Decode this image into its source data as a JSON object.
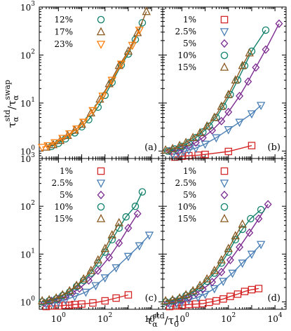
{
  "axes_labels": {
    "y": {
      "base": "τ",
      "sub": "α",
      "sup": "std",
      "sep": "/",
      "base2": "τ",
      "sub2": "α",
      "sup2": "swap"
    },
    "x": {
      "base": "τ",
      "sub": "α",
      "sup": "std",
      "sep": "/",
      "base2": "τ",
      "sub2": "0"
    }
  },
  "chart_data": [
    {
      "type": "scatter",
      "panel_label": "(a)",
      "xscale": "log",
      "yscale": "log",
      "xlim": [
        0.15,
        30000
      ],
      "ylim": [
        0.7,
        1000
      ],
      "legend_position": "top-left",
      "series": [
        {
          "name": "12%",
          "marker": "circle",
          "color": "#11806a",
          "x": [
            0.5,
            1.0,
            2,
            5,
            10,
            20,
            50,
            100,
            200,
            500,
            1000,
            2000,
            4000
          ],
          "y": [
            1.25,
            1.45,
            1.8,
            2.4,
            3.2,
            4.5,
            8.2,
            14.5,
            27,
            62,
            105,
            210,
            470
          ]
        },
        {
          "name": "17%",
          "marker": "triangle-up",
          "color": "#8a5a22",
          "x": [
            0.3,
            0.6,
            1.2,
            2.5,
            5,
            10,
            25,
            60,
            150,
            400,
            1000,
            2500,
            6000
          ],
          "y": [
            1.2,
            1.35,
            1.65,
            2.1,
            2.7,
            3.6,
            6.2,
            12,
            25,
            60,
            120,
            290,
            800
          ]
        },
        {
          "name": "23%",
          "marker": "triangle-down",
          "color": "#ff7f0e",
          "x": [
            0.2,
            0.35,
            0.7,
            1.5,
            3,
            6,
            12,
            30,
            80,
            200,
            500,
            1500,
            3000
          ],
          "y": [
            1.2,
            1.3,
            1.5,
            1.85,
            2.3,
            2.9,
            4.0,
            7.0,
            14,
            30,
            65,
            160,
            330
          ]
        }
      ]
    },
    {
      "type": "scatter",
      "panel_label": "(b)",
      "xscale": "log",
      "yscale": "log",
      "xlim": [
        0.15,
        30000
      ],
      "ylim": [
        0.7,
        1000
      ],
      "legend_position": "top-left",
      "series": [
        {
          "name": "1%",
          "marker": "square",
          "color": "#d62728",
          "x": [
            0.5,
            1,
            2,
            5,
            10,
            100,
            1000
          ],
          "y": [
            0.75,
            0.78,
            0.8,
            0.82,
            0.85,
            0.98,
            1.3
          ]
        },
        {
          "name": "2.5%",
          "marker": "triangle-down",
          "color": "#4a7fb5",
          "x": [
            0.4,
            0.7,
            1.2,
            2,
            4,
            10,
            30,
            100,
            300,
            1000,
            2500
          ],
          "y": [
            0.85,
            0.9,
            0.98,
            1.05,
            1.15,
            1.4,
            1.9,
            2.8,
            4.0,
            6.0,
            9.0
          ]
        },
        {
          "name": "5%",
          "marker": "diamond",
          "color": "#7b2a8f",
          "x": [
            0.3,
            0.6,
            1,
            2,
            4,
            8,
            20,
            50,
            100,
            300,
            700,
            1500,
            4000,
            15000
          ],
          "y": [
            1.0,
            1.05,
            1.15,
            1.3,
            1.5,
            1.9,
            2.7,
            4.2,
            6.5,
            14,
            28,
            55,
            130,
            450
          ]
        },
        {
          "name": "10%",
          "marker": "circle",
          "color": "#11806a",
          "x": [
            0.25,
            0.5,
            1,
            2,
            4,
            8,
            15,
            30,
            60,
            120,
            250,
            500,
            1000,
            4000
          ],
          "y": [
            1.0,
            1.1,
            1.25,
            1.5,
            1.9,
            2.5,
            3.3,
            5.0,
            8.5,
            15,
            30,
            60,
            120,
            330
          ]
        },
        {
          "name": "15%",
          "marker": "triangle-up",
          "color": "#8a5a22",
          "x": [
            0.2,
            0.4,
            0.8,
            1.5,
            3,
            6,
            12,
            25,
            50,
            100,
            200,
            400,
            800
          ],
          "y": [
            1.05,
            1.12,
            1.3,
            1.5,
            1.9,
            2.4,
            3.3,
            5.0,
            8.5,
            15,
            30,
            60,
            110
          ]
        }
      ]
    },
    {
      "type": "scatter",
      "panel_label": "(c)",
      "xscale": "log",
      "yscale": "log",
      "xlim": [
        0.15,
        30000
      ],
      "ylim": [
        0.7,
        1000
      ],
      "legend_position": "top-left",
      "series": [
        {
          "name": "1%",
          "marker": "square",
          "color": "#d62728",
          "x": [
            0.3,
            0.5,
            1,
            2,
            3,
            5,
            10,
            30,
            100,
            300,
            1000
          ],
          "y": [
            0.8,
            0.82,
            0.82,
            0.85,
            0.85,
            0.88,
            0.9,
            0.95,
            1.05,
            1.2,
            1.4
          ]
        },
        {
          "name": "2.5%",
          "marker": "triangle-down",
          "color": "#4a7fb5",
          "x": [
            0.3,
            0.6,
            1,
            2,
            5,
            15,
            40,
            100,
            300,
            1000,
            3000,
            8000
          ],
          "y": [
            0.9,
            0.95,
            1.0,
            1.1,
            1.3,
            1.6,
            2.2,
            3.2,
            5.2,
            9.0,
            15,
            25
          ]
        },
        {
          "name": "5%",
          "marker": "diamond",
          "color": "#7b2a8f",
          "x": [
            0.25,
            0.5,
            1,
            2,
            4,
            8,
            20,
            50,
            150,
            400,
            1000,
            2500
          ],
          "y": [
            0.95,
            1.05,
            1.15,
            1.3,
            1.55,
            1.9,
            2.8,
            4.5,
            8.5,
            17,
            35,
            70
          ]
        },
        {
          "name": "10%",
          "marker": "circle",
          "color": "#11806a",
          "x": [
            0.2,
            0.4,
            0.8,
            1.5,
            3,
            6,
            12,
            25,
            50,
            100,
            200,
            400,
            800,
            2000,
            4000
          ],
          "y": [
            1.0,
            1.05,
            1.15,
            1.35,
            1.6,
            2.1,
            2.8,
            4.0,
            6.5,
            11,
            20,
            35,
            60,
            100,
            200
          ]
        },
        {
          "name": "15%",
          "marker": "triangle-up",
          "color": "#8a5a22",
          "x": [
            0.2,
            0.4,
            0.8,
            1.5,
            3,
            6,
            12,
            25,
            50,
            100,
            200,
            400
          ],
          "y": [
            1.05,
            1.1,
            1.2,
            1.4,
            1.7,
            2.2,
            3.0,
            4.5,
            7.5,
            13,
            25,
            45
          ]
        }
      ]
    },
    {
      "type": "scatter",
      "panel_label": "(d)",
      "xscale": "log",
      "yscale": "log",
      "xlim": [
        0.15,
        30000
      ],
      "ylim": [
        0.7,
        1000
      ],
      "legend_position": "top-left",
      "series": [
        {
          "name": "1%",
          "marker": "square",
          "color": "#d62728",
          "x": [
            0.3,
            0.6,
            1,
            2,
            4,
            8,
            15,
            30,
            60,
            120,
            250,
            500,
            1000,
            2000
          ],
          "y": [
            0.8,
            0.82,
            0.85,
            0.88,
            0.9,
            0.92,
            0.98,
            1.05,
            1.15,
            1.3,
            1.45,
            1.65,
            1.8,
            1.9
          ]
        },
        {
          "name": "2.5%",
          "marker": "triangle-down",
          "color": "#4a7fb5",
          "x": [
            0.3,
            0.6,
            1,
            2,
            5,
            10,
            25,
            60,
            150,
            400,
            1000,
            2500
          ],
          "y": [
            0.9,
            0.95,
            1.0,
            1.1,
            1.25,
            1.45,
            1.9,
            2.7,
            4.0,
            6.5,
            10,
            16
          ]
        },
        {
          "name": "5%",
          "marker": "diamond",
          "color": "#7b2a8f",
          "x": [
            0.25,
            0.5,
            1,
            2,
            4,
            8,
            20,
            50,
            120,
            300,
            800,
            2000,
            5000
          ],
          "y": [
            0.95,
            1.02,
            1.1,
            1.25,
            1.5,
            1.85,
            2.6,
            4.2,
            7.5,
            14,
            28,
            55,
            110
          ]
        },
        {
          "name": "10%",
          "marker": "circle",
          "color": "#11806a",
          "x": [
            0.2,
            0.4,
            0.8,
            1.5,
            3,
            6,
            12,
            25,
            50,
            100,
            200,
            400,
            900,
            2500
          ],
          "y": [
            1.0,
            1.05,
            1.15,
            1.35,
            1.6,
            2.0,
            2.7,
            4.0,
            6.5,
            11,
            20,
            33,
            55,
            85
          ]
        },
        {
          "name": "15%",
          "marker": "triangle-up",
          "color": "#8a5a22",
          "x": [
            0.2,
            0.4,
            0.8,
            1.5,
            3,
            6,
            12,
            25,
            50,
            100,
            200,
            400
          ],
          "y": [
            1.05,
            1.1,
            1.2,
            1.4,
            1.7,
            2.2,
            3.0,
            4.5,
            7.5,
            13,
            24,
            42
          ]
        }
      ]
    }
  ],
  "ticks": {
    "x": [
      {
        "v": 1,
        "base": "10",
        "exp": "0"
      },
      {
        "v": 100,
        "base": "10",
        "exp": "2"
      },
      {
        "v": 10000,
        "base": "10",
        "exp": "4"
      }
    ],
    "y": [
      {
        "v": 1,
        "base": "10",
        "exp": "0"
      },
      {
        "v": 10,
        "base": "10",
        "exp": "1"
      },
      {
        "v": 100,
        "base": "10",
        "exp": "2"
      },
      {
        "v": 1000,
        "base": "10",
        "exp": "3"
      }
    ]
  }
}
